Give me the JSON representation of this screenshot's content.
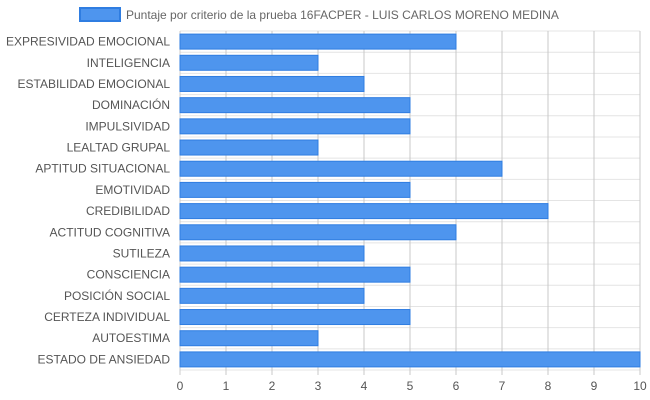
{
  "chart_data": {
    "type": "bar",
    "orientation": "horizontal",
    "categories": [
      "EXPRESIVIDAD EMOCIONAL",
      "INTELIGENCIA",
      "ESTABILIDAD EMOCIONAL",
      "DOMINACIÓN",
      "IMPULSIVIDAD",
      "LEALTAD GRUPAL",
      "APTITUD SITUACIONAL",
      "EMOTIVIDAD",
      "CREDIBILIDAD",
      "ACTITUD COGNITIVA",
      "SUTILEZA",
      "CONSCIENCIA",
      "POSICIÓN SOCIAL",
      "CERTEZA INDIVIDUAL",
      "AUTOESTIMA",
      "ESTADO DE ANSIEDAD"
    ],
    "series": [
      {
        "name": "Puntaje por criterio de la prueba 16FACPER - LUIS CARLOS MORENO MEDINA",
        "values": [
          6,
          3,
          4,
          5,
          5,
          3,
          7,
          5,
          8,
          6,
          4,
          5,
          4,
          5,
          3,
          10
        ],
        "color": "#4e95ee",
        "border_color": "#2f7de1"
      }
    ],
    "xlim": [
      0,
      10
    ],
    "x_ticks": [
      "0",
      "1",
      "2",
      "3",
      "4",
      "5",
      "6",
      "7",
      "8",
      "9",
      "10"
    ],
    "grid": true,
    "legend_position": "top"
  }
}
